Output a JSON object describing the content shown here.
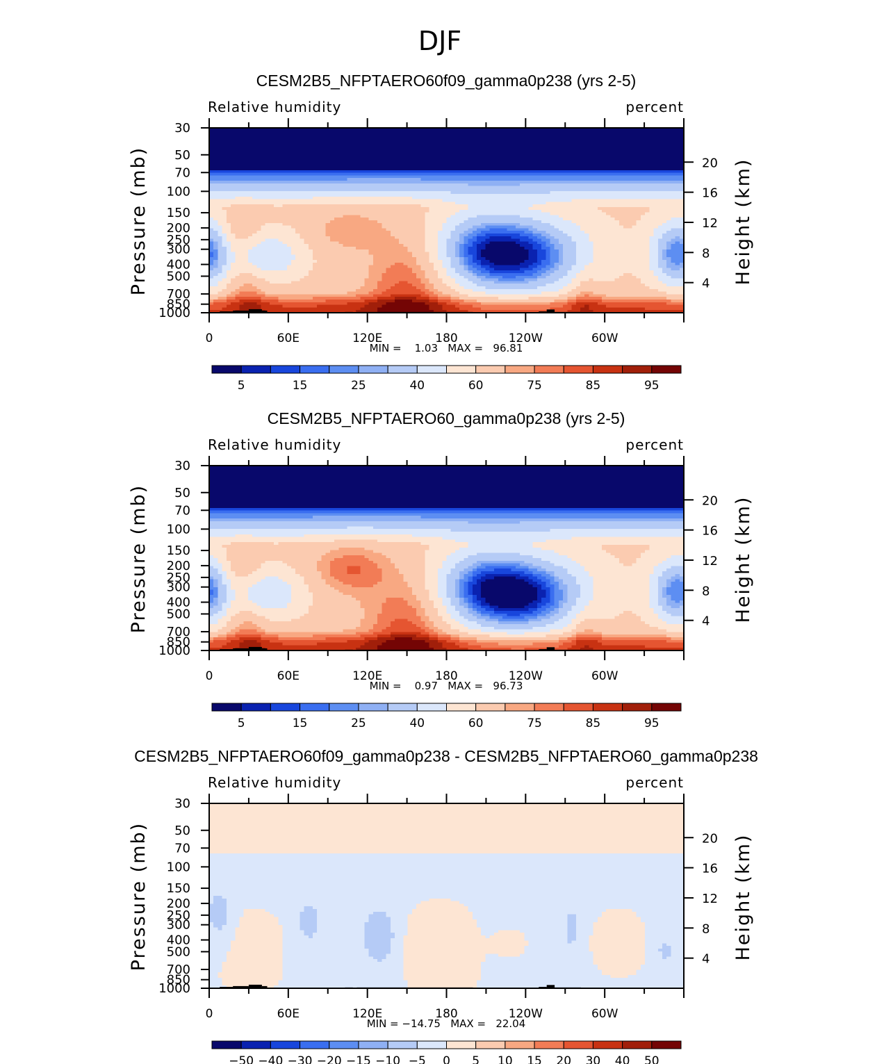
{
  "figure": {
    "season": "DJF",
    "colors": {
      "panel_palette": [
        "#08086b",
        "#0a22b0",
        "#1846dc",
        "#3a6ef0",
        "#5d8ef2",
        "#8fb0f4",
        "#b5cbf6",
        "#dbe7fb",
        "#fde5d3",
        "#fbcbb0",
        "#f8a882",
        "#f27c56",
        "#e55531",
        "#c83212",
        "#a11f0a",
        "#740505"
      ],
      "diff_palette": [
        "#08086b",
        "#0a22b0",
        "#1846dc",
        "#3a6ef0",
        "#5d8ef2",
        "#8fb0f4",
        "#b5cbf6",
        "#dbe7fb",
        "#fde5d3",
        "#fbcbb0",
        "#f8a882",
        "#f27c56",
        "#e55531",
        "#c83212",
        "#a11f0a",
        "#740505"
      ],
      "terrain": "#000000"
    }
  },
  "chart_data": [
    {
      "type": "heatmap",
      "title": "CESM2B5_NFPTAERO60f09_gamma0p238 (yrs 2-5)",
      "left_label": "Relative humidity",
      "right_label": "percent",
      "ylabel": "Pressure (mb)",
      "ylabel_right": "Height (km)",
      "x_ticks": [
        "0",
        "60E",
        "120E",
        "180",
        "120W",
        "60W"
      ],
      "x_tick_lon": [
        0,
        60,
        120,
        180,
        240,
        300
      ],
      "xlim": [
        0,
        360
      ],
      "y_ticks": [
        "30",
        "50",
        "70",
        "100",
        "150",
        "200",
        "250",
        "300",
        "400",
        "500",
        "700",
        "850",
        "1000"
      ],
      "y_tick_p": [
        30,
        50,
        70,
        100,
        150,
        200,
        250,
        300,
        400,
        500,
        700,
        850,
        1000
      ],
      "ylim": [
        1000,
        30
      ],
      "height_ticks": [
        "20",
        "16",
        "12",
        "8",
        "4"
      ],
      "height_km": [
        20,
        16,
        12,
        8,
        4
      ],
      "stats": "MIN =    1.03   MAX =   96.81",
      "min": 1.03,
      "max": 96.81,
      "colorbar_labels": [
        "5",
        "15",
        "25",
        "40",
        "60",
        "75",
        "85",
        "95"
      ],
      "mode": "field"
    },
    {
      "type": "heatmap",
      "title": "CESM2B5_NFPTAERO60_gamma0p238 (yrs 2-5)",
      "left_label": "Relative humidity",
      "right_label": "percent",
      "ylabel": "Pressure (mb)",
      "ylabel_right": "Height (km)",
      "x_ticks": [
        "0",
        "60E",
        "120E",
        "180",
        "120W",
        "60W"
      ],
      "x_tick_lon": [
        0,
        60,
        120,
        180,
        240,
        300
      ],
      "xlim": [
        0,
        360
      ],
      "y_ticks": [
        "30",
        "50",
        "70",
        "100",
        "150",
        "200",
        "250",
        "300",
        "400",
        "500",
        "700",
        "850",
        "1000"
      ],
      "y_tick_p": [
        30,
        50,
        70,
        100,
        150,
        200,
        250,
        300,
        400,
        500,
        700,
        850,
        1000
      ],
      "ylim": [
        1000,
        30
      ],
      "height_ticks": [
        "20",
        "16",
        "12",
        "8",
        "4"
      ],
      "height_km": [
        20,
        16,
        12,
        8,
        4
      ],
      "stats": "MIN =    0.97   MAX =   96.73",
      "min": 0.97,
      "max": 96.73,
      "colorbar_labels": [
        "5",
        "15",
        "25",
        "40",
        "60",
        "75",
        "85",
        "95"
      ],
      "mode": "field"
    },
    {
      "type": "heatmap",
      "title": "CESM2B5_NFPTAERO60f09_gamma0p238 - CESM2B5_NFPTAERO60_gamma0p238",
      "left_label": "Relative humidity",
      "right_label": "percent",
      "ylabel": "Pressure (mb)",
      "ylabel_right": "Height (km)",
      "x_ticks": [
        "0",
        "60E",
        "120E",
        "180",
        "120W",
        "60W"
      ],
      "x_tick_lon": [
        0,
        60,
        120,
        180,
        240,
        300
      ],
      "xlim": [
        0,
        360
      ],
      "y_ticks": [
        "30",
        "50",
        "70",
        "100",
        "150",
        "200",
        "250",
        "300",
        "400",
        "500",
        "700",
        "850",
        "1000"
      ],
      "y_tick_p": [
        30,
        50,
        70,
        100,
        150,
        200,
        250,
        300,
        400,
        500,
        700,
        850,
        1000
      ],
      "ylim": [
        1000,
        30
      ],
      "height_ticks": [
        "20",
        "16",
        "12",
        "8",
        "4"
      ],
      "height_km": [
        20,
        16,
        12,
        8,
        4
      ],
      "stats": "MIN = −14.75   MAX =   22.04",
      "min": -14.75,
      "max": 22.04,
      "colorbar_labels": [
        "−50",
        "−40",
        "−30",
        "−20",
        "−15",
        "−10",
        "−5",
        "0",
        "5",
        "10",
        "15",
        "20",
        "30",
        "40",
        "50"
      ],
      "mode": "diff"
    }
  ]
}
